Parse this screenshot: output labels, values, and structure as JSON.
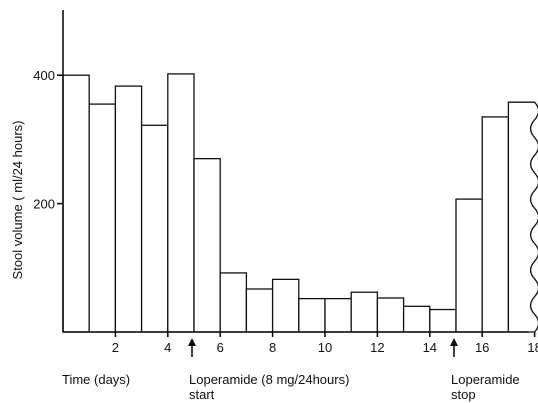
{
  "chart_data": {
    "type": "bar",
    "xlabel": "Time (days)",
    "ylabel": "Stool volume ( ml/24 hours)",
    "x_ticks": [
      2,
      4,
      6,
      8,
      10,
      12,
      14,
      16,
      18
    ],
    "y_ticks": [
      200,
      400
    ],
    "xlim": [
      0,
      18
    ],
    "ylim": [
      0,
      500
    ],
    "x": [
      1,
      2,
      3,
      4,
      5,
      6,
      7,
      8,
      9,
      10,
      11,
      12,
      13,
      14,
      15,
      16,
      17,
      18
    ],
    "values": [
      400,
      355,
      383,
      322,
      402,
      270,
      92,
      67,
      82,
      52,
      52,
      62,
      53,
      40,
      35,
      207,
      335,
      358
    ],
    "grid": false,
    "annotations": [
      {
        "day": 5,
        "line1": "Loperamide (8 mg/24hours)",
        "line2": "start"
      },
      {
        "day": 15,
        "line1": "Loperamide",
        "line2": "stop"
      }
    ]
  }
}
